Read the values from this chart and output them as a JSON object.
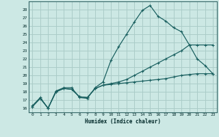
{
  "xlabel": "Humidex (Indice chaleur)",
  "bg_color": "#cce8e4",
  "grid_color": "#aaccc8",
  "line_color": "#1a6060",
  "xlim": [
    -0.5,
    23.5
  ],
  "ylim": [
    15.5,
    29.0
  ],
  "xticks": [
    0,
    1,
    2,
    3,
    4,
    5,
    6,
    7,
    8,
    9,
    10,
    11,
    12,
    13,
    14,
    15,
    16,
    17,
    18,
    19,
    20,
    21,
    22,
    23
  ],
  "yticks": [
    16,
    17,
    18,
    19,
    20,
    21,
    22,
    23,
    24,
    25,
    26,
    27,
    28
  ],
  "line1_x": [
    0,
    1,
    2,
    3,
    4,
    5,
    6,
    7,
    8,
    9,
    10,
    11,
    12,
    13,
    14,
    15,
    16,
    17,
    18,
    19,
    20,
    21,
    22,
    23
  ],
  "line1_y": [
    16.3,
    17.3,
    16.0,
    18.1,
    18.5,
    18.5,
    17.3,
    17.2,
    18.5,
    19.2,
    21.8,
    23.5,
    25.0,
    26.5,
    27.9,
    28.5,
    27.2,
    26.6,
    25.8,
    25.3,
    23.7,
    22.0,
    21.2,
    20.2
  ],
  "line2_x": [
    0,
    1,
    2,
    3,
    4,
    5,
    6,
    7,
    8,
    9,
    10,
    11,
    12,
    13,
    14,
    15,
    16,
    17,
    18,
    19,
    20,
    21,
    22,
    23
  ],
  "line2_y": [
    16.2,
    17.2,
    16.0,
    18.0,
    18.4,
    18.3,
    17.4,
    17.3,
    18.4,
    18.8,
    19.0,
    19.2,
    19.5,
    20.0,
    20.5,
    21.0,
    21.5,
    22.0,
    22.5,
    23.0,
    23.7,
    23.7,
    23.7,
    23.7
  ],
  "line3_x": [
    0,
    1,
    2,
    3,
    4,
    5,
    6,
    7,
    8,
    9,
    10,
    11,
    12,
    13,
    14,
    15,
    16,
    17,
    18,
    19,
    20,
    21,
    22,
    23
  ],
  "line3_y": [
    16.2,
    17.2,
    16.0,
    18.0,
    18.4,
    18.3,
    17.4,
    17.3,
    18.4,
    18.8,
    18.9,
    19.0,
    19.1,
    19.2,
    19.3,
    19.4,
    19.5,
    19.6,
    19.8,
    20.0,
    20.1,
    20.2,
    20.2,
    20.2
  ]
}
